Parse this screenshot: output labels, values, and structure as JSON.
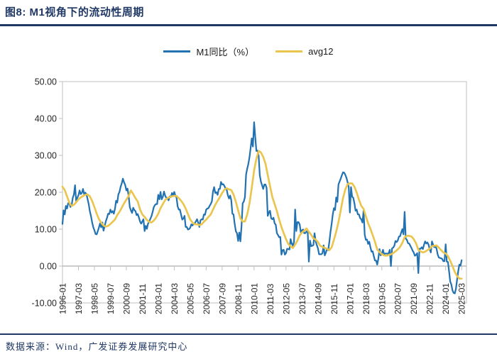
{
  "header": {
    "title": "图8:  M1视角下的流动性周期"
  },
  "footer": {
    "source": "数据来源：Wind，广发证券发展研究中心"
  },
  "colors": {
    "accent_navy": "#1F3864",
    "axis_gray": "#BFBFBF",
    "tick_text": "#262626"
  },
  "chart_data": {
    "type": "line",
    "title": "M1视角下的流动性周期",
    "x_start": "1996-01",
    "x_end": "2025-03",
    "months_total": 351,
    "x_tick_interval_months": 14,
    "x_tick_labels": [
      "1996-01",
      "1997-03",
      "1998-05",
      "1999-07",
      "2000-09",
      "2001-11",
      "2003-01",
      "2004-03",
      "2005-05",
      "2006-07",
      "2007-09",
      "2008-11",
      "2010-01",
      "2011-03",
      "2012-05",
      "2013-07",
      "2014-09",
      "2015-11",
      "2017-01",
      "2018-03",
      "2019-05",
      "2020-07",
      "2021-09",
      "2022-11",
      "2024-01",
      "2025-03"
    ],
    "y_axis": {
      "min": -10,
      "max": 50,
      "step": 10,
      "tick_format_decimals": 2
    },
    "legend_position": "top",
    "grid": "zero-line-only",
    "series": [
      {
        "name": "M1同比（%）",
        "color": "#2272B2",
        "month_step": 1,
        "values": [
          11.4,
          15.1,
          14.0,
          16.3,
          15.6,
          17.0,
          17.3,
          16.0,
          16.5,
          18.5,
          19.4,
          21.9,
          17.5,
          18.5,
          19.2,
          20.5,
          19.5,
          19.8,
          20.9,
          19.5,
          19.9,
          19.5,
          18.2,
          16.8,
          14.8,
          13.5,
          11.8,
          10.5,
          9.7,
          8.7,
          8.6,
          9.5,
          10.5,
          11.6,
          10.5,
          11.8,
          9.6,
          10.8,
          12.1,
          13.0,
          14.2,
          14.1,
          15.3,
          14.5,
          14.9,
          14.2,
          15.5,
          17.7,
          17.2,
          19.4,
          20.1,
          21.5,
          22.4,
          23.7,
          22.7,
          22.0,
          20.5,
          21.0,
          19.0,
          16.0,
          15.1,
          14.4,
          15.8,
          15.2,
          14.9,
          13.8,
          14.1,
          13.2,
          12.1,
          11.5,
          12.1,
          12.7,
          9.5,
          10.9,
          10.1,
          11.5,
          12.0,
          12.8,
          13.5,
          14.6,
          15.9,
          16.5,
          16.8,
          16.8,
          19.3,
          18.1,
          20.1,
          18.1,
          18.8,
          20.2,
          19.1,
          18.5,
          18.5,
          17.8,
          18.9,
          18.7,
          19.8,
          19.2,
          20.1,
          19.1,
          18.6,
          16.2,
          15.3,
          15.3,
          13.9,
          12.6,
          12.9,
          13.6,
          10.6,
          10.6,
          9.9,
          10.0,
          10.4,
          11.3,
          11.0,
          11.5,
          11.6,
          12.1,
          12.7,
          11.8,
          10.6,
          12.4,
          12.7,
          12.6,
          14.0,
          13.9,
          15.3,
          15.6,
          15.7,
          16.3,
          16.8,
          17.5,
          20.2,
          21.4,
          19.8,
          20.0,
          19.3,
          20.9,
          20.9,
          22.8,
          22.1,
          22.2,
          21.7,
          21.0,
          20.7,
          19.2,
          18.3,
          19.1,
          17.9,
          14.2,
          14.0,
          11.5,
          9.4,
          8.9,
          6.8,
          9.1,
          6.7,
          10.9,
          17.0,
          17.5,
          18.7,
          24.8,
          26.4,
          27.7,
          29.5,
          32.0,
          34.6,
          32.4,
          39.0,
          35.0,
          31.2,
          31.3,
          29.9,
          24.6,
          22.9,
          21.9,
          20.9,
          22.1,
          22.1,
          21.2,
          13.6,
          14.5,
          15.0,
          12.9,
          12.7,
          13.1,
          11.6,
          11.2,
          8.9,
          8.4,
          7.8,
          7.9,
          3.1,
          4.3,
          4.4,
          3.1,
          3.5,
          4.7,
          4.6,
          4.5,
          7.3,
          6.1,
          5.5,
          6.5,
          15.3,
          9.5,
          11.9,
          11.9,
          11.3,
          9.1,
          9.7,
          9.9,
          8.9,
          8.9,
          9.4,
          9.3,
          1.2,
          6.9,
          5.4,
          5.5,
          5.7,
          8.9,
          6.7,
          5.7,
          4.8,
          3.2,
          3.2,
          3.2,
          3.5,
          5.6,
          2.9,
          3.7,
          4.7,
          4.3,
          6.6,
          9.3,
          11.4,
          14.0,
          15.7,
          15.2,
          18.6,
          17.4,
          22.1,
          22.9,
          23.7,
          24.6,
          25.4,
          25.3,
          24.7,
          23.9,
          22.7,
          21.4,
          14.5,
          21.4,
          18.8,
          18.5,
          17.0,
          15.0,
          15.3,
          14.0,
          14.0,
          13.0,
          12.7,
          11.8,
          15.0,
          8.5,
          7.1,
          7.2,
          6.0,
          6.6,
          5.1,
          3.9,
          4.0,
          2.7,
          1.5,
          1.5,
          0.4,
          2.0,
          4.6,
          2.9,
          3.4,
          4.4,
          3.1,
          3.4,
          3.4,
          3.3,
          3.5,
          4.4,
          0.0,
          4.8,
          5.0,
          5.5,
          6.8,
          6.5,
          6.9,
          8.0,
          8.1,
          9.1,
          10.0,
          8.6,
          14.7,
          7.4,
          7.1,
          6.2,
          6.1,
          5.5,
          4.9,
          4.2,
          3.7,
          2.8,
          3.0,
          3.5,
          -1.9,
          4.7,
          4.7,
          5.1,
          4.6,
          5.8,
          6.7,
          6.1,
          6.4,
          5.8,
          4.6,
          3.7,
          6.7,
          5.8,
          5.1,
          5.3,
          4.7,
          3.1,
          2.3,
          2.2,
          2.1,
          1.9,
          1.3,
          1.3,
          5.9,
          1.2,
          1.1,
          -1.4,
          -4.2,
          -5.0,
          -6.6,
          -7.3,
          -7.4,
          -6.1,
          -3.7,
          -1.4,
          0.4,
          0.1,
          1.6
        ]
      },
      {
        "name": "avg12",
        "color": "#EAC64F",
        "month_step": 2,
        "values": [
          21.5,
          20.6,
          18.9,
          17.2,
          16.3,
          16.6,
          17.3,
          18.1,
          18.6,
          19.0,
          19.3,
          19.4,
          18.9,
          17.6,
          16.0,
          14.2,
          12.7,
          11.7,
          11.0,
          10.7,
          10.9,
          11.4,
          12.0,
          12.6,
          13.8,
          14.7,
          15.8,
          17.0,
          18.0,
          19.0,
          20.5,
          19.5,
          18.4,
          17.5,
          15.4,
          14.0,
          13.3,
          12.5,
          12.0,
          11.8,
          12.3,
          13.1,
          14.2,
          15.7,
          16.8,
          17.9,
          18.4,
          18.7,
          18.9,
          19.0,
          19.0,
          18.4,
          17.7,
          16.8,
          15.6,
          14.1,
          12.6,
          11.8,
          11.3,
          11.3,
          11.1,
          11.3,
          12.0,
          12.6,
          13.3,
          14.0,
          15.3,
          16.6,
          17.7,
          18.7,
          19.8,
          20.7,
          21.1,
          20.8,
          20.6,
          19.4,
          17.4,
          15.1,
          12.9,
          12.1,
          12.1,
          14.0,
          17.0,
          21.2,
          25.9,
          29.1,
          31.2,
          30.8,
          29.6,
          27.8,
          24.7,
          21.7,
          18.7,
          16.8,
          14.9,
          12.6,
          10.6,
          8.9,
          7.3,
          6.0,
          5.3,
          4.9,
          5.8,
          6.9,
          8.3,
          9.1,
          9.6,
          10.2,
          9.3,
          8.5,
          7.5,
          7.2,
          6.5,
          5.5,
          5.2,
          4.9,
          4.7,
          4.3,
          5.1,
          7.1,
          9.3,
          11.9,
          15.1,
          18.4,
          20.8,
          22.2,
          22.4,
          22.4,
          21.5,
          19.9,
          18.0,
          16.3,
          15.5,
          13.5,
          11.6,
          10.1,
          8.4,
          6.6,
          4.5,
          3.8,
          3.2,
          2.9,
          2.8,
          3.0,
          3.2,
          3.5,
          4.0,
          4.5,
          5.2,
          6.3,
          7.8,
          8.2,
          8.2,
          8.0,
          7.3,
          6.2,
          4.4,
          4.0,
          3.7,
          3.9,
          4.3,
          4.7,
          5.4,
          5.5,
          5.6,
          5.0,
          4.3,
          3.7,
          3.4,
          2.7,
          1.4,
          0.0,
          -1.6,
          -2.7,
          -3.4,
          -3.4
        ]
      }
    ]
  }
}
